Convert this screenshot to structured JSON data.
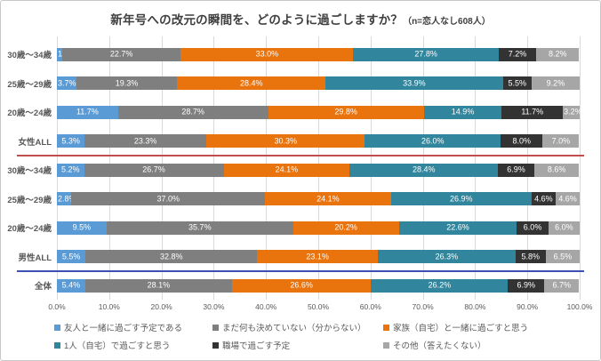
{
  "chart_data": {
    "type": "bar",
    "orientation": "horizontal",
    "stacked": true,
    "title": "新年号への改元の瞬間を、どのように過ごしますか？",
    "title_suffix": "（n=恋人なし608人）",
    "categories": [
      "30歳〜34歳",
      "25歳〜29歳",
      "20歳〜24歳",
      "女性ALL",
      "30歳〜34歳",
      "25歳〜29歳",
      "20歳〜24歳",
      "男性ALL",
      "全体"
    ],
    "series": [
      {
        "name": "友人と一緒に過ごす予定である",
        "color": "#5B9BD5",
        "values": [
          1.0,
          3.7,
          11.7,
          5.3,
          5.2,
          2.8,
          9.5,
          5.5,
          5.4
        ]
      },
      {
        "name": "まだ何も決めていない（分からない）",
        "color": "#7F7F7F",
        "values": [
          22.7,
          19.3,
          28.7,
          23.3,
          26.7,
          37.0,
          35.7,
          32.8,
          28.1
        ]
      },
      {
        "name": "家族（自宅）と一緒に過ごすと思う",
        "color": "#E9730C",
        "values": [
          33.0,
          28.4,
          29.8,
          30.3,
          24.1,
          24.1,
          20.2,
          23.1,
          26.6
        ]
      },
      {
        "name": "1人（自宅）で過ごすと思う",
        "color": "#31859C",
        "values": [
          27.8,
          33.9,
          14.9,
          26.0,
          28.4,
          26.9,
          22.6,
          26.3,
          26.2
        ]
      },
      {
        "name": "職場で過ごす予定",
        "color": "#333333",
        "values": [
          7.2,
          5.5,
          11.7,
          8.0,
          6.9,
          4.6,
          6.0,
          5.8,
          6.9
        ]
      },
      {
        "name": "その他（答えたくない）",
        "color": "#A6A6A6",
        "values": [
          8.2,
          9.2,
          3.2,
          7.0,
          8.6,
          4.6,
          6.0,
          6.5,
          6.7
        ]
      }
    ],
    "x_ticks": [
      "0.0%",
      "10.0%",
      "20.0%",
      "30.0%",
      "40.0%",
      "50.0%",
      "60.0%",
      "70.0%",
      "80.0%",
      "90.0%",
      "100.0%"
    ],
    "xlim": [
      0,
      100
    ],
    "grid": true,
    "legend_position": "bottom",
    "dividers": [
      {
        "after_index": 3,
        "color": "#C0504D"
      },
      {
        "after_index": 7,
        "color": "#3E50B4"
      }
    ],
    "value_suffix": "%"
  }
}
